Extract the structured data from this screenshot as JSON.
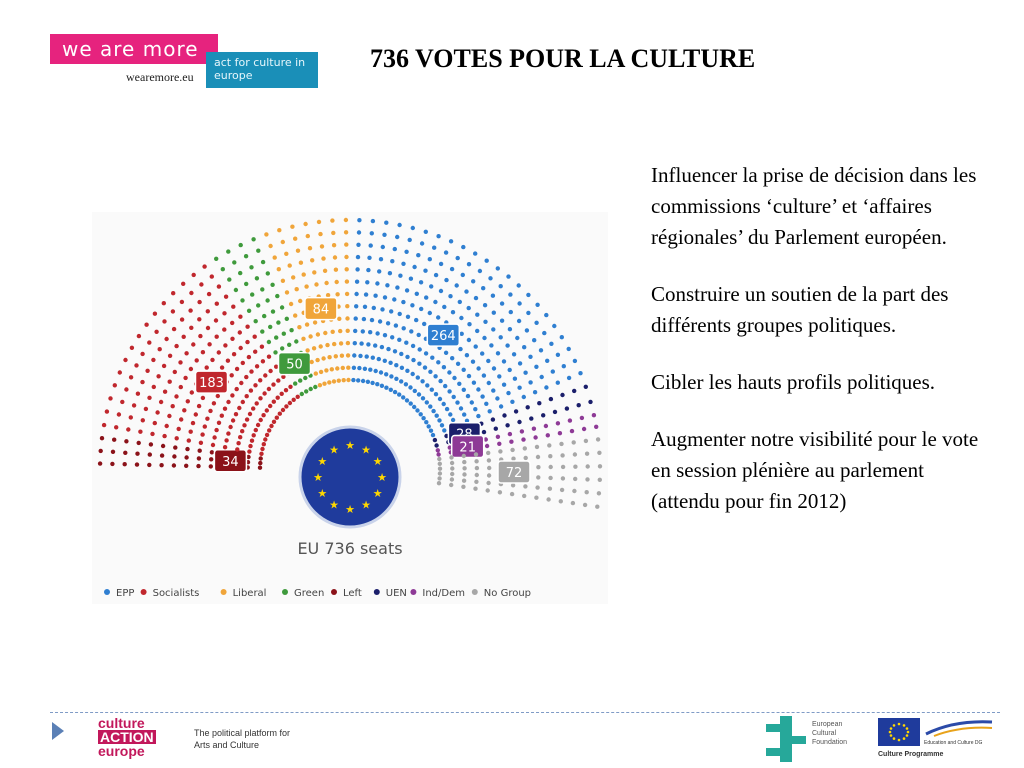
{
  "header": {
    "logo": {
      "main": "we are more",
      "tag": "act for culture in europe",
      "url": "wearemore.eu"
    },
    "title": "736 VOTES POUR LA CULTURE"
  },
  "chart_data": {
    "type": "pie",
    "subtype": "parliament-hemicycle",
    "center_label": "EU 736 seats",
    "categories": [
      "EPP",
      "Socialists",
      "Liberal",
      "Green",
      "Left",
      "UEN",
      "Ind/Dem",
      "No Group"
    ],
    "values": [
      264,
      183,
      84,
      50,
      34,
      28,
      21,
      72
    ],
    "colors": [
      "#2f7fd1",
      "#c0272d",
      "#f0a53a",
      "#3f9a3c",
      "#8b1219",
      "#1b1f6b",
      "#8e3a96",
      "#a7a7a7"
    ],
    "legend_position": "bottom"
  },
  "body": {
    "paragraphs": [
      "Influencer la prise de décision dans les commissions ‘culture’ et ‘affaires régionales’ du Parlement européen.",
      "Construire un soutien de la part des différents groupes politiques.",
      "Cibler les hauts profils politiques.",
      "Augmenter notre visibilité pour le vote en session plénière au parlement (attendu pour fin 2012)"
    ]
  },
  "footer": {
    "cae": {
      "line1": "culture",
      "line2": "ACTION",
      "line3": "europe",
      "tagline": "The political platform for Arts and Culture"
    },
    "ecf": {
      "line1": "European",
      "line2": "Cultural",
      "line3": "Foundation"
    },
    "eu": {
      "dg": "Education and Culture DG",
      "programme": "Culture Programme"
    }
  }
}
